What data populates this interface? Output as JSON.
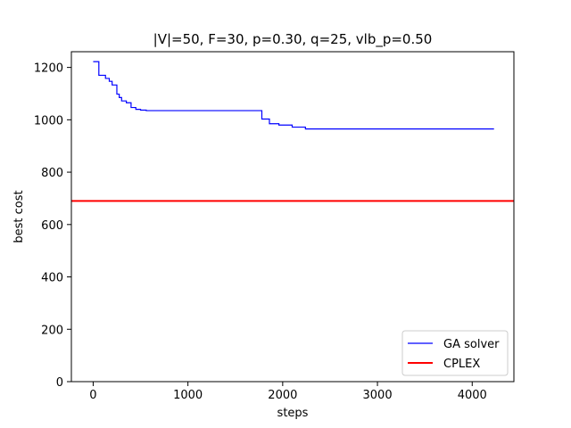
{
  "chart_data": {
    "type": "line",
    "title": "|V|=50, F=30, p=0.30, q=25, vlb_p=0.50",
    "xlabel": "steps",
    "ylabel": "best cost",
    "xlim": [
      -230,
      4440
    ],
    "ylim": [
      0,
      1260
    ],
    "xticks": [
      0,
      1000,
      2000,
      3000,
      4000
    ],
    "yticks": [
      0,
      200,
      400,
      600,
      800,
      1000,
      1200
    ],
    "xtick_labels": [
      "0",
      "1000",
      "2000",
      "3000",
      "4000"
    ],
    "ytick_labels": [
      "0",
      "200",
      "400",
      "600",
      "800",
      "1000",
      "1200"
    ],
    "grid": false,
    "legend_position": "lower-right",
    "series": [
      {
        "name": "GA solver",
        "color": "#0000ff",
        "style": "step",
        "x": [
          0,
          50,
          60,
          130,
          170,
          200,
          250,
          275,
          300,
          350,
          400,
          450,
          500,
          560,
          1740,
          1780,
          1860,
          1900,
          1960,
          2100,
          2240,
          4230
        ],
        "y": [
          1222,
          1222,
          1170,
          1158,
          1147,
          1133,
          1098,
          1085,
          1072,
          1065,
          1047,
          1040,
          1037,
          1035,
          1035,
          1003,
          985,
          985,
          980,
          972,
          965,
          965
        ]
      },
      {
        "name": "CPLEX",
        "color": "#ff0000",
        "style": "hline",
        "y": 690
      }
    ]
  }
}
